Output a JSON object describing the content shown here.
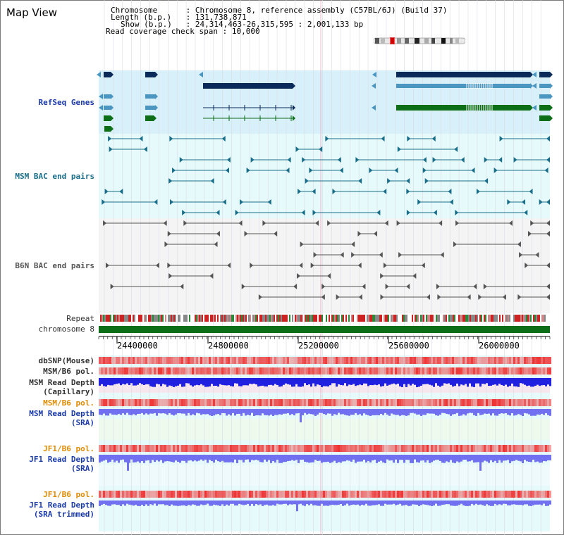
{
  "title": "Map View",
  "info": [
    {
      "key": "Chromosome",
      "value": "Chromosome 8, reference assembly (C57BL/6J) (Build 37)"
    },
    {
      "key": "Length (b.p.)",
      "value": "131,738,871"
    },
    {
      "key": "Show (b.p.)",
      "value": "24,314,463-26,315,595 : 2,001,133 bp"
    },
    {
      "key": "Read coverage check span",
      "value": "10,000"
    }
  ],
  "tracks": {
    "refseq": "RefSeq Genes",
    "msm_bac": "MSM BAC end pairs",
    "b6n_bac": "B6N BAC end pairs",
    "repeat": "Repeat",
    "chromosome": "chromosome 8",
    "dbsnp": "dbSNP(Mouse)",
    "msm_b6_pol": "MSM/B6 pol.",
    "msm_depth_cap_1": "MSM Read Depth",
    "msm_depth_cap_2": "(Capillary)",
    "msm_b6_pol_2": "MSM/B6 pol.",
    "msm_depth_sra_1": "MSM Read Depth",
    "msm_depth_sra_2": "(SRA)",
    "jf1_b6_pol": "JF1/B6 pol.",
    "jf1_depth_sra_1": "JF1 Read Depth",
    "jf1_depth_sra_2": "(SRA)",
    "jf1_b6_pol_2": "JF1/B6 pol.",
    "jf1_depth_trim_1": "JF1 Read Depth",
    "jf1_depth_trim_2": "(SRA trimmed)"
  },
  "axis": {
    "ticks": [
      "24400000",
      "24800000",
      "25200000",
      "25600000",
      "26000000"
    ]
  },
  "colors": {
    "refseq_bg": "#d8f0fa",
    "msm_bac_bg": "#e6fafb",
    "b6n_bac_bg": "#f4f4f4",
    "lower_bg": "#e6fafb",
    "gene_dark": "#0a2a5a",
    "gene_mid": "#4a96c0",
    "gene_green": "#0d6e18",
    "msm_pair": "#1a6e8a",
    "b6n_pair": "#555555",
    "chromosome": "#0d6e18",
    "label_blue": "#1a3aa8",
    "label_teal": "#1a6e8a",
    "label_orange": "#e08a00",
    "label_gray": "#333333",
    "depth_blue": "#2020e0",
    "depth_light": "#7070f0",
    "pol_red": "#ee3333"
  }
}
